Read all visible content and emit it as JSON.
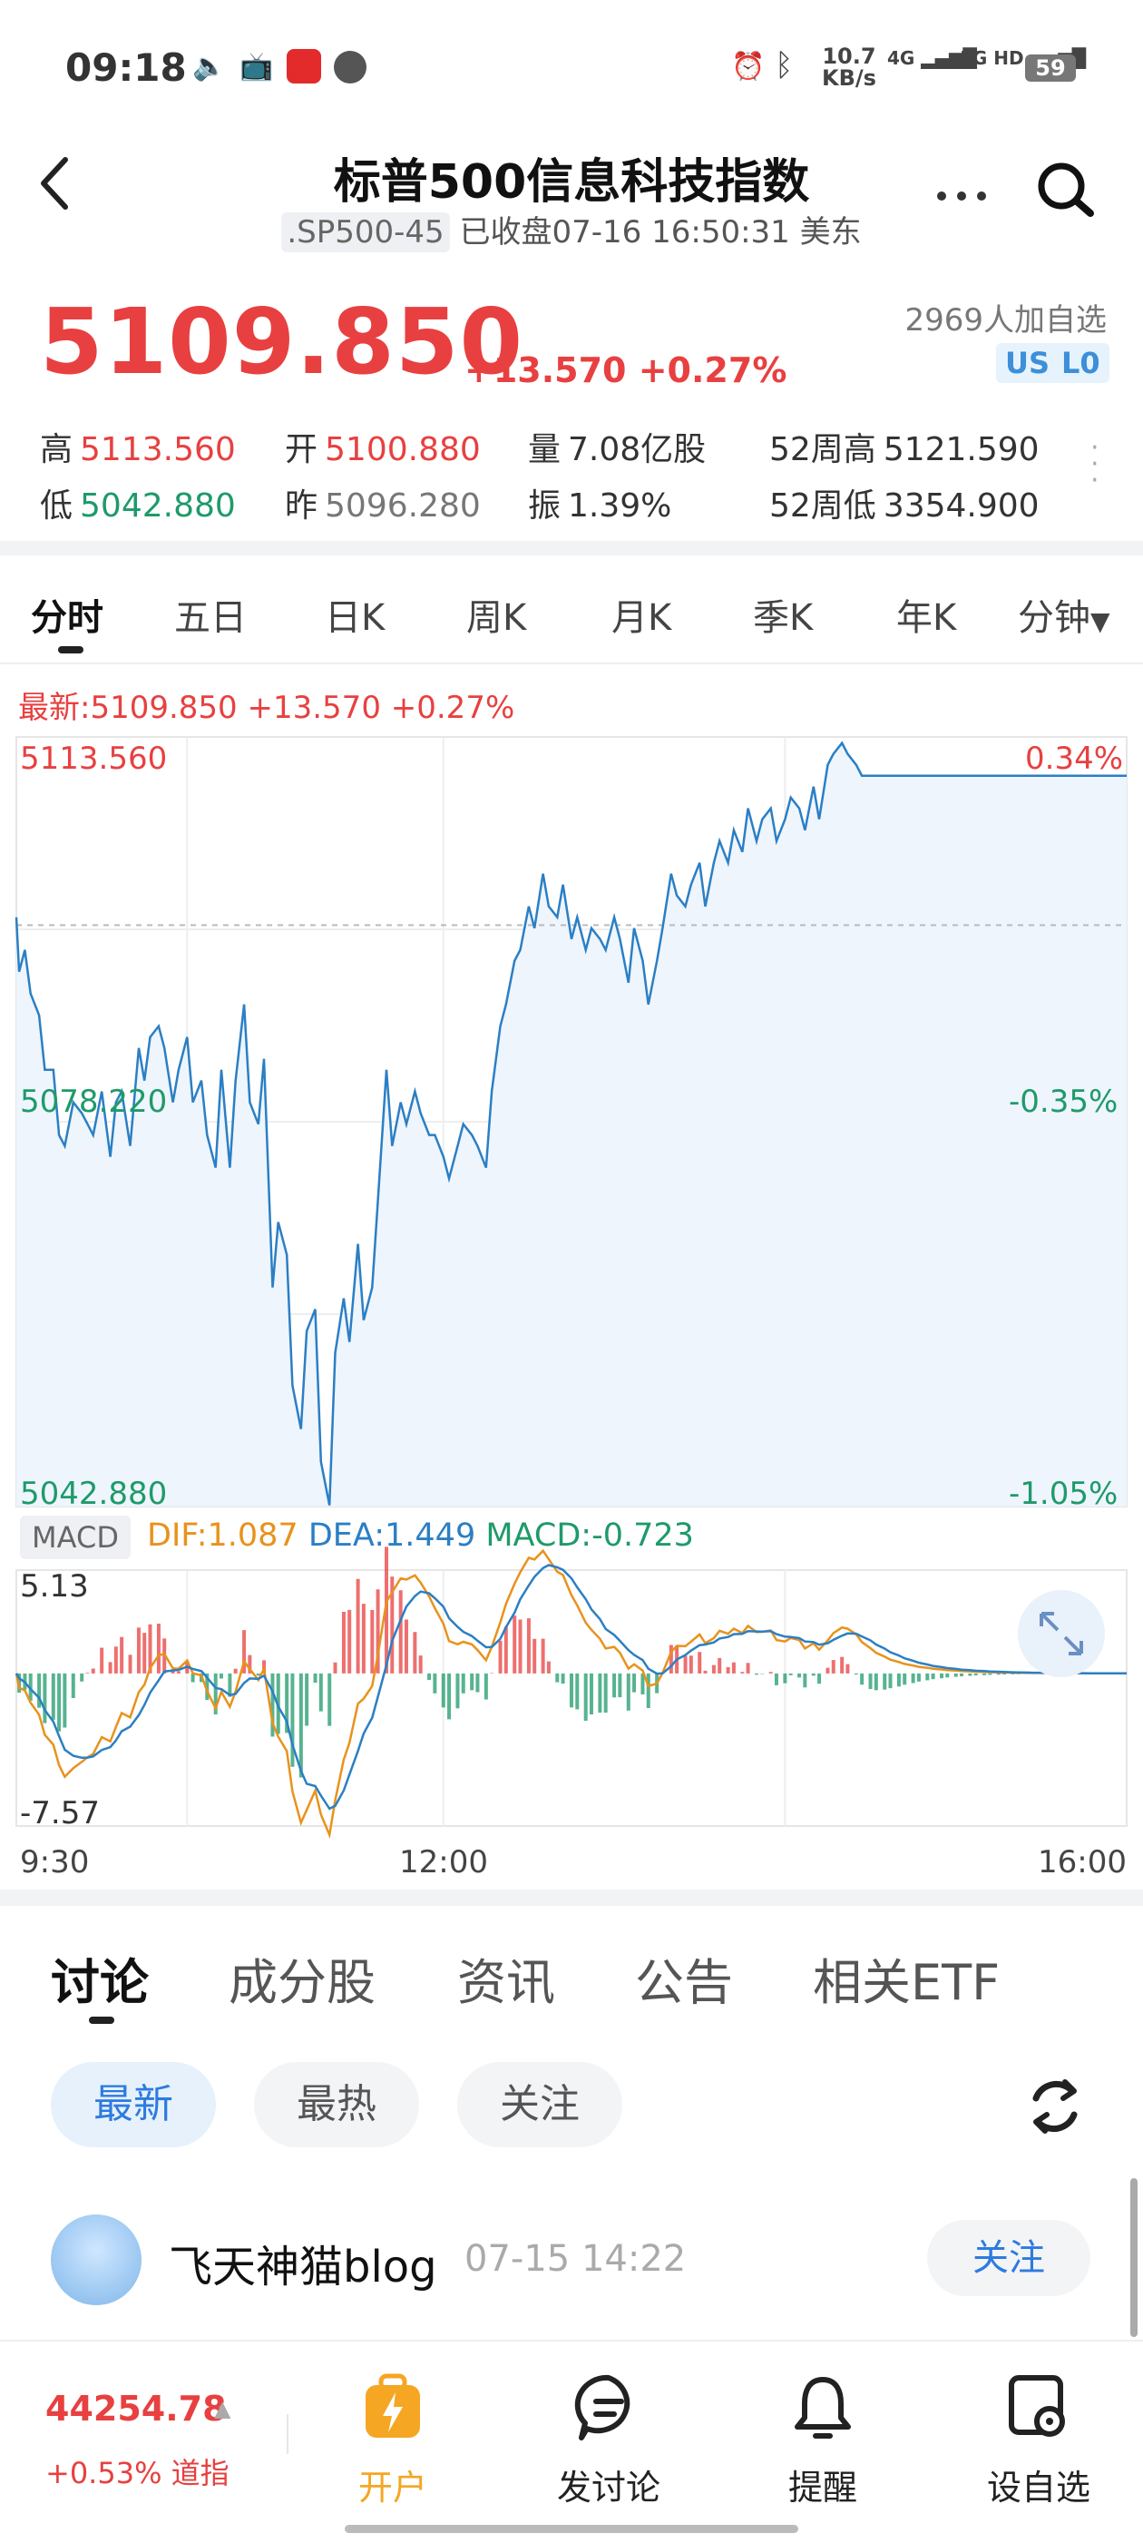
{
  "status_bar": {
    "time": "09:18",
    "net_speed": "10.7",
    "net_unit": "KB/s",
    "sig1": "4G",
    "sig2": "5G HD",
    "battery": "59"
  },
  "header": {
    "title": "标普500信息科技指数",
    "code": ".SP500-45",
    "status": "已收盘07-16 16:50:31 美东"
  },
  "quote": {
    "price": "5109.850",
    "change": "+13.570",
    "change_pct": "+0.27%",
    "watchers": "2969人加自选",
    "badges": [
      "US",
      "L0"
    ],
    "stats": [
      {
        "label": "高",
        "value": "5113.560"
      },
      {
        "label": "开",
        "value": "5100.880"
      },
      {
        "label": "量",
        "value": "7.08亿股"
      },
      {
        "label": "52周高",
        "value": "5121.590"
      },
      {
        "label": "低",
        "value": "5042.880"
      },
      {
        "label": "昨",
        "value": "5096.280"
      },
      {
        "label": "振",
        "value": "1.39%"
      },
      {
        "label": "52周低",
        "value": "3354.900"
      }
    ]
  },
  "period_tabs": [
    "分时",
    "五日",
    "日K",
    "周K",
    "月K",
    "季K",
    "年K",
    "分钟"
  ],
  "chart_info": "最新:5109.850  +13.570  +0.27%",
  "macd_info": {
    "tag": "MACD",
    "dif": "DIF:1.087",
    "dea": "DEA:1.449",
    "macd": "MACD:-0.723"
  },
  "colors": {
    "up": "#e84040",
    "down": "#1f9a6a",
    "line": "#2b7fc4",
    "dea": "#e8921c",
    "accent": "#2d7be0"
  },
  "chart_data": [
    {
      "type": "line",
      "yticks_left": [
        "5113.560",
        "5078.220",
        "5042.880"
      ],
      "yticks_right": [
        "0.34%",
        "-0.35%",
        "-1.05%"
      ],
      "xticks": [
        "9:30",
        "12:00",
        "16:00"
      ],
      "ylim": [
        5042.88,
        5113.56
      ],
      "prev_close": 5096.28,
      "series": [
        {
          "x": [
            0,
            1,
            3,
            5,
            8,
            10,
            13,
            15,
            17,
            20,
            23,
            25,
            27,
            30,
            33,
            35,
            37,
            40,
            43,
            45,
            47,
            50,
            52,
            55,
            57,
            60,
            62,
            65,
            67,
            70,
            72,
            75,
            77,
            80,
            82,
            85,
            87,
            90,
            92,
            95,
            97,
            100,
            102,
            105,
            107,
            110,
            112,
            115,
            117,
            120,
            122,
            125,
            127,
            130,
            132,
            135,
            137,
            140,
            142,
            145,
            147,
            150,
            152,
            155,
            157,
            160,
            162,
            165,
            167,
            170,
            172,
            175,
            177,
            180,
            182,
            185,
            187,
            190,
            192,
            195,
            197,
            200,
            202,
            205,
            207,
            210,
            212,
            215,
            217,
            220,
            222,
            225,
            227,
            230,
            232,
            235,
            237,
            240,
            242,
            245,
            247,
            250,
            252,
            255,
            257,
            260,
            262,
            265,
            267,
            270,
            272,
            275,
            277,
            280,
            282,
            285,
            287,
            290,
            292,
            295,
            297,
            300,
            302,
            305,
            307,
            310,
            312,
            315,
            317,
            320,
            322,
            325,
            327,
            330,
            332,
            335,
            337,
            340,
            342,
            345,
            347,
            350,
            352,
            355,
            357,
            360,
            362,
            365,
            367,
            370,
            372,
            375,
            377,
            380,
            382,
            385,
            387,
            390
          ],
          "values": [
            5097,
            5092,
            5094,
            5090,
            5088,
            5083,
            5083,
            5077,
            5076,
            5080,
            5079,
            5078,
            5077,
            5081,
            5075,
            5080,
            5081,
            5076,
            5085,
            5082,
            5086,
            5087,
            5085,
            5080,
            5083,
            5086,
            5080,
            5082,
            5077,
            5074,
            5083,
            5074,
            5082,
            5089,
            5080,
            5078,
            5084,
            5063,
            5069,
            5066,
            5054,
            5050,
            5059,
            5061,
            5047,
            5043,
            5057,
            5062,
            5058,
            5067,
            5060,
            5063,
            5071,
            5083,
            5076,
            5080,
            5078,
            5081,
            5079,
            5077,
            5077,
            5075,
            5073,
            5076,
            5078,
            5077,
            5076,
            5074,
            5081,
            5087,
            5089,
            5093,
            5094,
            5098,
            5096,
            5101,
            5098,
            5097,
            5100,
            5095,
            5097,
            5094,
            5096,
            5095,
            5094,
            5097,
            5095,
            5091,
            5096,
            5093,
            5089,
            5093,
            5096,
            5101,
            5099,
            5098,
            5100,
            5102,
            5098,
            5102,
            5104,
            5102,
            5105,
            5103,
            5107,
            5104,
            5106,
            5107,
            5104,
            5106,
            5108,
            5107,
            5105,
            5109,
            5106,
            5111,
            5112,
            5113,
            5112,
            5111,
            5110,
            5110,
            5110,
            5110,
            5110,
            5110,
            5110,
            5110,
            5110,
            5110,
            5110,
            5110,
            5110,
            5110,
            5110,
            5110,
            5110,
            5110,
            5110,
            5110,
            5110,
            5110,
            5110,
            5110,
            5110,
            5110,
            5110,
            5110,
            5110,
            5110,
            5110,
            5110,
            5110,
            5110,
            5110,
            5110,
            5110,
            5110
          ]
        }
      ]
    },
    {
      "type": "bar",
      "name_bars": "MACD",
      "ylim": [
        -7.57,
        5.13
      ],
      "yticks": [
        "5.13",
        "-7.57"
      ]
    }
  ],
  "discussion_tabs": [
    "讨论",
    "成分股",
    "资讯",
    "公告",
    "相关ETF"
  ],
  "filter_pills": [
    "最新",
    "最热",
    "关注"
  ],
  "post": {
    "author": "飞天神猫blog",
    "time": "07-15 14:22",
    "follow": "关注"
  },
  "bottom_nav": {
    "index_value": "44254.78",
    "index_change": "+0.53%",
    "index_name": "道指",
    "items": [
      "开户",
      "发讨论",
      "提醒",
      "设自选"
    ]
  }
}
